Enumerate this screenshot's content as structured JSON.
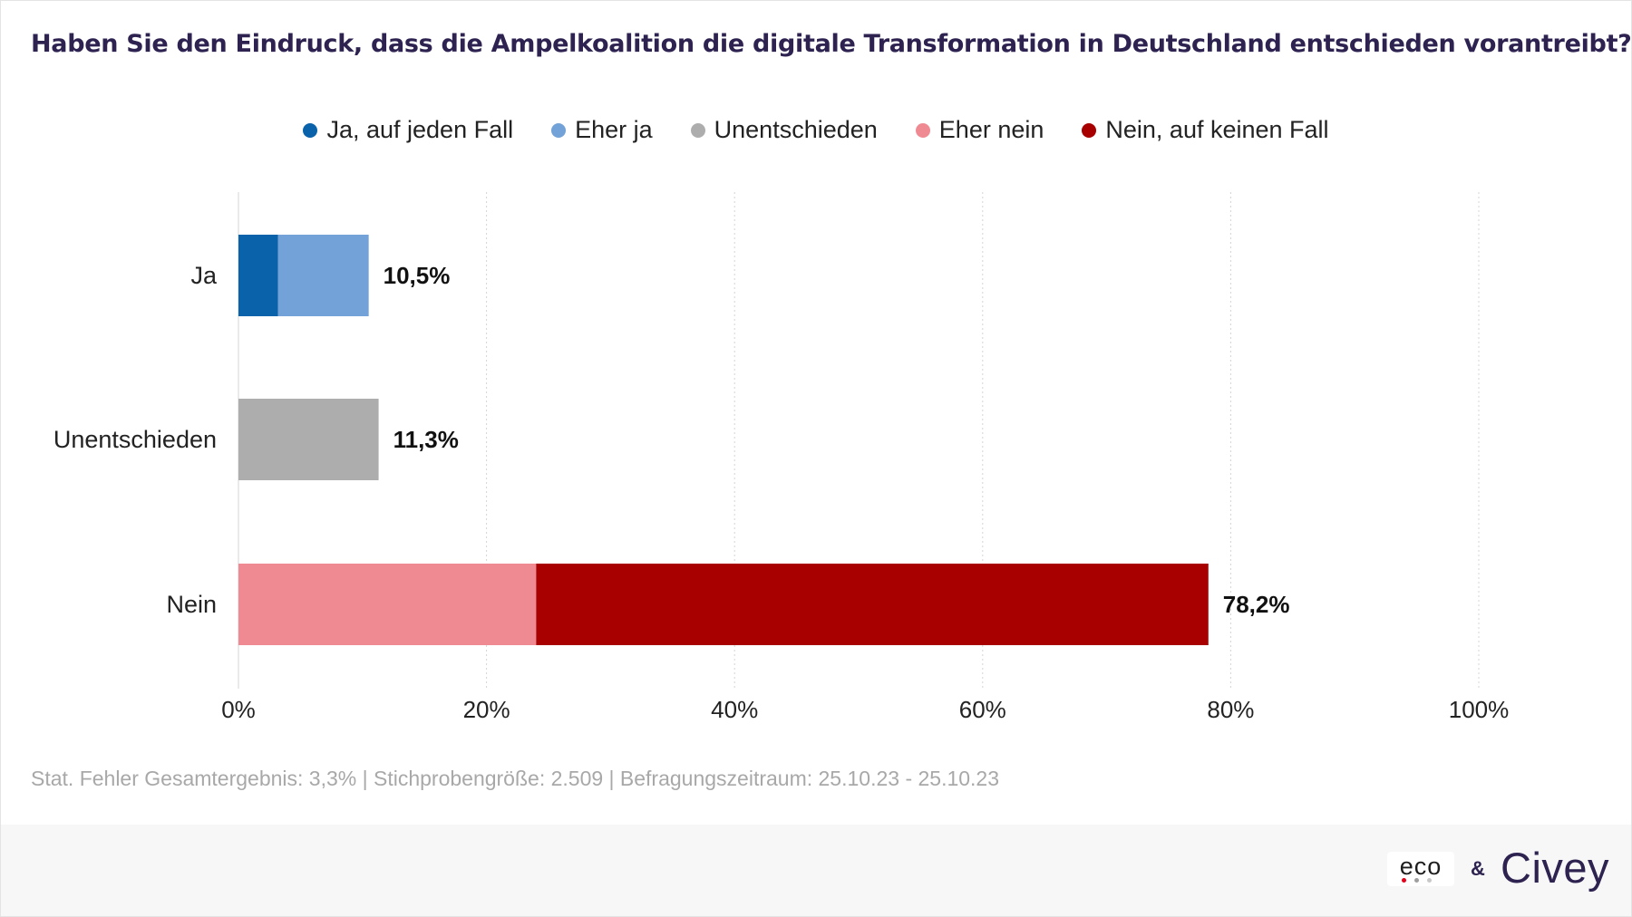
{
  "title": "Haben Sie den Eindruck, dass die Ampelkoalition die digitale Transformation in Deutschland entschieden vorantreibt?",
  "colors": {
    "ja_auf_jeden_fall": "#0a62aa",
    "eher_ja": "#72a2d7",
    "unentschieden": "#adadad",
    "eher_nein": "#f08a92",
    "nein_auf_keinen_fall": "#a80000",
    "title": "#2d2250",
    "footnote": "#a8a8a8"
  },
  "legend": [
    {
      "label": "Ja, auf jeden Fall",
      "color": "#0a62aa"
    },
    {
      "label": "Eher ja",
      "color": "#72a2d7"
    },
    {
      "label": "Unentschieden",
      "color": "#adadad"
    },
    {
      "label": "Eher nein",
      "color": "#f08a92"
    },
    {
      "label": "Nein, auf keinen Fall",
      "color": "#a80000"
    }
  ],
  "chart_data": {
    "type": "bar",
    "orientation": "horizontal",
    "stacked": true,
    "categories": [
      "Ja",
      "Unentschieden",
      "Nein"
    ],
    "series": [
      {
        "name": "Ja, auf jeden Fall",
        "color": "#0a62aa",
        "values": [
          3.2,
          0,
          0
        ]
      },
      {
        "name": "Eher ja",
        "color": "#72a2d7",
        "values": [
          7.3,
          0,
          0
        ]
      },
      {
        "name": "Unentschieden",
        "color": "#adadad",
        "values": [
          0,
          11.3,
          0
        ]
      },
      {
        "name": "Eher nein",
        "color": "#f08a92",
        "values": [
          0,
          0,
          24.0
        ]
      },
      {
        "name": "Nein, auf keinen Fall",
        "color": "#a80000",
        "values": [
          0,
          0,
          54.2
        ]
      }
    ],
    "totals": [
      10.5,
      11.3,
      78.2
    ],
    "total_labels": [
      "10,5%",
      "11,3%",
      "78,2%"
    ],
    "xlim": [
      0,
      100
    ],
    "xticks": [
      0,
      20,
      40,
      60,
      80,
      100
    ],
    "xtick_labels": [
      "0%",
      "20%",
      "40%",
      "60%",
      "80%",
      "100%"
    ],
    "grid": "vertical dotted",
    "legend_position": "top-center"
  },
  "footnote": "Stat. Fehler Gesamtergebnis: 3,3% | Stichprobengröße: 2.509 | Befragungszeitraum: 25.10.23 - 25.10.23",
  "logos": {
    "eco": "eco",
    "separator": "&",
    "civey": "Civey",
    "eco_dot_colors": [
      "#e2001a",
      "#9e9e9e",
      "#c8c8c8"
    ]
  }
}
